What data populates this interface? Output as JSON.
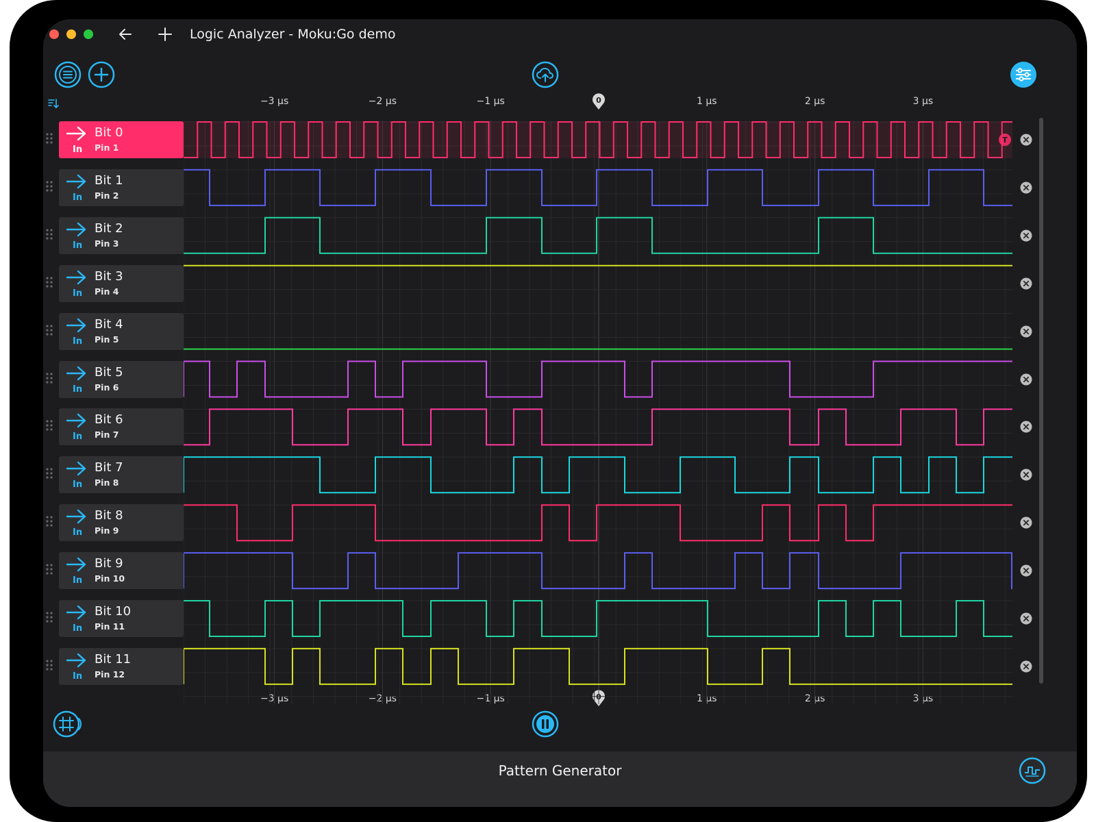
{
  "window": {
    "title": "Logic Analyzer - Moku:Go demo"
  },
  "time_axis": {
    "unit": "µs",
    "ticks": [
      {
        "value": -3,
        "label": "−3 µs"
      },
      {
        "value": -2,
        "label": "−2 µs"
      },
      {
        "value": -1,
        "label": "−1 µs"
      },
      {
        "value": 1,
        "label": "1 µs"
      },
      {
        "value": 2,
        "label": "2 µs"
      },
      {
        "value": 3,
        "label": "3 µs"
      }
    ],
    "zero_label": "0",
    "range": [
      -3.82,
      3.82
    ]
  },
  "trigger_marker": "T",
  "channels": [
    {
      "name": "Bit 0",
      "direction": "In",
      "pin": "Pin 1",
      "color": "#ff2d6a",
      "active": true
    },
    {
      "name": "Bit 1",
      "direction": "In",
      "pin": "Pin 2",
      "color": "#5b5ef0",
      "active": false
    },
    {
      "name": "Bit 2",
      "direction": "In",
      "pin": "Pin 3",
      "color": "#1fd6a2",
      "active": false
    },
    {
      "name": "Bit 3",
      "direction": "In",
      "pin": "Pin 4",
      "color": "#d6e21f",
      "active": false
    },
    {
      "name": "Bit 4",
      "direction": "In",
      "pin": "Pin 5",
      "color": "#29d64a",
      "active": false
    },
    {
      "name": "Bit 5",
      "direction": "In",
      "pin": "Pin 6",
      "color": "#c94ee8",
      "active": false
    },
    {
      "name": "Bit 6",
      "direction": "In",
      "pin": "Pin 7",
      "color": "#ff3aa0",
      "active": false
    },
    {
      "name": "Bit 7",
      "direction": "In",
      "pin": "Pin 8",
      "color": "#19d8e0",
      "active": false
    },
    {
      "name": "Bit 8",
      "direction": "In",
      "pin": "Pin 9",
      "color": "#ff2d6a",
      "active": false
    },
    {
      "name": "Bit 9",
      "direction": "In",
      "pin": "Pin 10",
      "color": "#5b5ef0",
      "active": false
    },
    {
      "name": "Bit 10",
      "direction": "In",
      "pin": "Pin 11",
      "color": "#1fd6a2",
      "active": false
    },
    {
      "name": "Bit 11",
      "direction": "In",
      "pin": "Pin 12",
      "color": "#d6e21f",
      "active": false
    }
  ],
  "bottom_bar": {
    "title": "Pattern Generator"
  },
  "colors": {
    "accent": "#2ab8f5",
    "background": "#1c1c1e",
    "panel": "#303033"
  },
  "icons": {
    "menu": "menu-icon",
    "add": "plus-icon",
    "cloud": "cloud-upload-icon",
    "settings": "sliders-icon",
    "grid": "grid-icon",
    "pause": "pause-icon",
    "waveform": "waveform-icon"
  }
}
